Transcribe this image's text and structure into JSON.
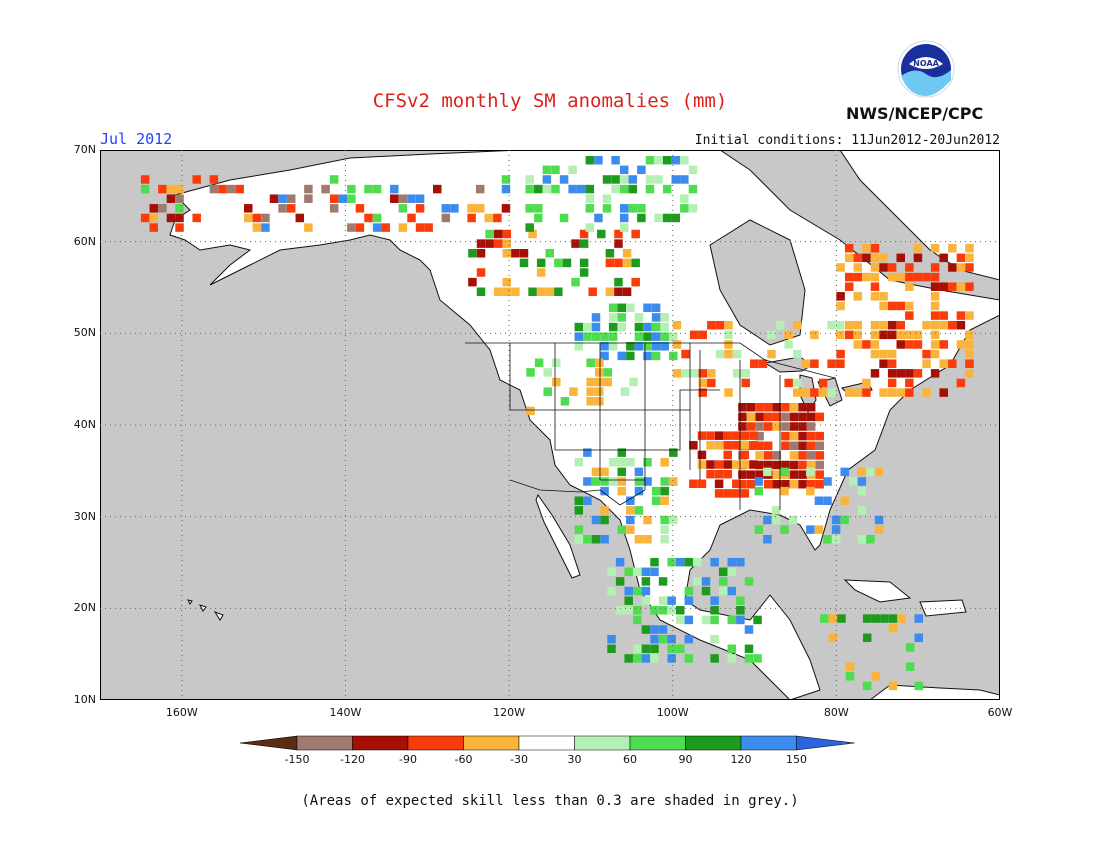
{
  "header": {
    "title": "CFSv2 monthly SM anomalies (mm)",
    "month": "Jul 2012",
    "initial_conditions": "Initial conditions: 11Jun2012-20Jun2012",
    "agency": "NWS/NCEP/CPC",
    "logo_text": "NOAA"
  },
  "map": {
    "projection": "lat-lon",
    "lon_range": [
      -170,
      -60
    ],
    "lat_range": [
      10,
      70
    ],
    "lat_labels": [
      "70N",
      "60N",
      "50N",
      "40N",
      "30N",
      "20N",
      "10N"
    ],
    "lon_labels": [
      "160W",
      "140W",
      "120W",
      "100W",
      "80W",
      "60W"
    ],
    "ocean_color": "#c8c8c8",
    "land_base_color": "#ffffff"
  },
  "colorbar": {
    "labels": [
      "-150",
      "-120",
      "-90",
      "-60",
      "-30",
      "30",
      "60",
      "90",
      "120",
      "150"
    ],
    "colors": [
      "#5a2d12",
      "#a07a70",
      "#a50f05",
      "#fa3c0a",
      "#fab43c",
      "#ffffff",
      "#b4f0b4",
      "#50dc50",
      "#1e9b1e",
      "#3c8cf0",
      "#2c64e0"
    ]
  },
  "footnote": "(Areas of expected skill less than 0.3 are shaded in grey.)"
}
